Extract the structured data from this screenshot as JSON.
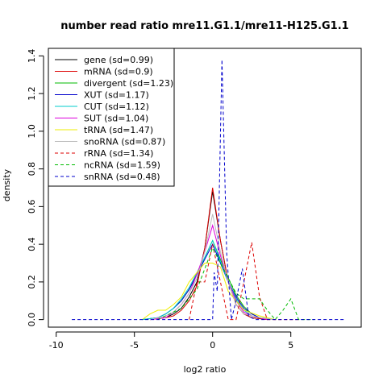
{
  "chart_data": {
    "type": "line",
    "title": "number read ratio mre11.G1.1/mre11-H125.G1.1",
    "xlabel": "log2 ratio",
    "ylabel": "density",
    "xlim": [
      -10.5,
      9.5
    ],
    "ylim": [
      -0.04,
      1.44
    ],
    "x_ticks": [
      -10,
      -5,
      0,
      5
    ],
    "y_ticks": [
      0.0,
      0.2,
      0.4,
      0.6,
      0.8,
      1.0,
      1.2,
      1.4
    ],
    "x_tick_labels": [
      "-10",
      "-5",
      "0",
      "5"
    ],
    "y_tick_labels": [
      "0.0",
      "0.2",
      "0.4",
      "0.6",
      "0.8",
      "1.0",
      "1.2",
      "1.4"
    ],
    "grid": false,
    "legend_position": "top-left",
    "series": [
      {
        "name": "gene (sd=0.99)",
        "color": "#000000",
        "dash": false,
        "points": [
          [
            -4,
            0
          ],
          [
            -3,
            0.01
          ],
          [
            -2.5,
            0.03
          ],
          [
            -2,
            0.06
          ],
          [
            -1.5,
            0.12
          ],
          [
            -1,
            0.2
          ],
          [
            -0.5,
            0.38
          ],
          [
            0,
            0.68
          ],
          [
            0.5,
            0.42
          ],
          [
            1,
            0.2
          ],
          [
            1.5,
            0.08
          ],
          [
            2,
            0.03
          ],
          [
            2.5,
            0.01
          ],
          [
            3.5,
            0
          ]
        ]
      },
      {
        "name": "mRNA (sd=0.9)",
        "color": "#dd0000",
        "dash": false,
        "points": [
          [
            -4,
            0
          ],
          [
            -3,
            0.01
          ],
          [
            -2.5,
            0.02
          ],
          [
            -2,
            0.05
          ],
          [
            -1.5,
            0.1
          ],
          [
            -1,
            0.18
          ],
          [
            -0.5,
            0.38
          ],
          [
            0,
            0.7
          ],
          [
            0.5,
            0.42
          ],
          [
            1,
            0.2
          ],
          [
            1.5,
            0.08
          ],
          [
            2,
            0.03
          ],
          [
            2.5,
            0.01
          ],
          [
            3.5,
            0
          ]
        ]
      },
      {
        "name": "divergent (sd=1.23)",
        "color": "#00bb00",
        "dash": false,
        "points": [
          [
            -4.5,
            0
          ],
          [
            -3.5,
            0.01
          ],
          [
            -3,
            0.03
          ],
          [
            -2.5,
            0.06
          ],
          [
            -2,
            0.1
          ],
          [
            -1.5,
            0.16
          ],
          [
            -1,
            0.24
          ],
          [
            -0.5,
            0.33
          ],
          [
            0,
            0.42
          ],
          [
            0.5,
            0.32
          ],
          [
            1,
            0.22
          ],
          [
            1.5,
            0.13
          ],
          [
            2,
            0.07
          ],
          [
            2.5,
            0.03
          ],
          [
            3,
            0.01
          ],
          [
            4,
            0
          ]
        ]
      },
      {
        "name": "XUT (sd=1.17)",
        "color": "#0000cc",
        "dash": false,
        "points": [
          [
            -4.5,
            0
          ],
          [
            -3.5,
            0.01
          ],
          [
            -3,
            0.03
          ],
          [
            -2.5,
            0.06
          ],
          [
            -2,
            0.1
          ],
          [
            -1.5,
            0.16
          ],
          [
            -1,
            0.24
          ],
          [
            -0.5,
            0.32
          ],
          [
            0,
            0.4
          ],
          [
            0.5,
            0.3
          ],
          [
            1,
            0.2
          ],
          [
            1.5,
            0.12
          ],
          [
            2,
            0.06
          ],
          [
            2.5,
            0.03
          ],
          [
            3,
            0.01
          ],
          [
            4,
            0
          ]
        ]
      },
      {
        "name": "CUT (sd=1.12)",
        "color": "#00cccc",
        "dash": false,
        "points": [
          [
            -4.5,
            0
          ],
          [
            -3.5,
            0.01
          ],
          [
            -3,
            0.03
          ],
          [
            -2.5,
            0.06
          ],
          [
            -2,
            0.11
          ],
          [
            -1.5,
            0.17
          ],
          [
            -1,
            0.25
          ],
          [
            -0.5,
            0.33
          ],
          [
            0,
            0.42
          ],
          [
            0.5,
            0.31
          ],
          [
            1,
            0.2
          ],
          [
            1.5,
            0.11
          ],
          [
            2,
            0.05
          ],
          [
            2.5,
            0.02
          ],
          [
            3,
            0.01
          ],
          [
            4,
            0
          ]
        ]
      },
      {
        "name": "SUT (sd=1.04)",
        "color": "#dd00dd",
        "dash": false,
        "points": [
          [
            -4,
            0
          ],
          [
            -3,
            0.01
          ],
          [
            -2.5,
            0.04
          ],
          [
            -2,
            0.08
          ],
          [
            -1.5,
            0.14
          ],
          [
            -1,
            0.24
          ],
          [
            -0.5,
            0.36
          ],
          [
            0,
            0.5
          ],
          [
            0.5,
            0.34
          ],
          [
            1,
            0.2
          ],
          [
            1.5,
            0.1
          ],
          [
            2,
            0.04
          ],
          [
            2.5,
            0.02
          ],
          [
            3.5,
            0
          ]
        ]
      },
      {
        "name": "tRNA (sd=1.47)",
        "color": "#eeee00",
        "dash": false,
        "points": [
          [
            -4.5,
            0
          ],
          [
            -4,
            0.03
          ],
          [
            -3.5,
            0.05
          ],
          [
            -3,
            0.05
          ],
          [
            -2.5,
            0.08
          ],
          [
            -2,
            0.12
          ],
          [
            -1.5,
            0.2
          ],
          [
            -1,
            0.25
          ],
          [
            -0.5,
            0.3
          ],
          [
            0,
            0.3
          ],
          [
            0.5,
            0.28
          ],
          [
            1,
            0.15
          ],
          [
            1.5,
            0.1
          ],
          [
            2,
            0.05
          ],
          [
            3,
            0.02
          ],
          [
            4,
            0
          ]
        ]
      },
      {
        "name": "snoRNA (sd=0.87)",
        "color": "#bbbbbb",
        "dash": false,
        "points": [
          [
            -4,
            0
          ],
          [
            -3,
            0.02
          ],
          [
            -2.5,
            0.04
          ],
          [
            -2,
            0.08
          ],
          [
            -1.5,
            0.14
          ],
          [
            -1,
            0.22
          ],
          [
            -0.5,
            0.36
          ],
          [
            0,
            0.56
          ],
          [
            0.5,
            0.36
          ],
          [
            1,
            0.2
          ],
          [
            1.5,
            0.08
          ],
          [
            2,
            0.03
          ],
          [
            3,
            0.01
          ],
          [
            4,
            0
          ]
        ]
      },
      {
        "name": "rRNA (sd=1.34)",
        "color": "#dd0000",
        "dash": true,
        "points": [
          [
            -1.5,
            0
          ],
          [
            -1,
            0.2
          ],
          [
            -0.5,
            0.2
          ],
          [
            0,
            0.4
          ],
          [
            0.5,
            0.2
          ],
          [
            1,
            0
          ],
          [
            1.5,
            0
          ],
          [
            2,
            0.2
          ],
          [
            2.5,
            0.41
          ],
          [
            3,
            0.12
          ],
          [
            3.5,
            0
          ],
          [
            5.5,
            0
          ]
        ]
      },
      {
        "name": "ncRNA (sd=1.59)",
        "color": "#00bb00",
        "dash": true,
        "points": [
          [
            -3.5,
            0
          ],
          [
            -2,
            0.06
          ],
          [
            -1,
            0.16
          ],
          [
            0,
            0.38
          ],
          [
            1,
            0.22
          ],
          [
            1.5,
            0.14
          ],
          [
            2,
            0.11
          ],
          [
            2.5,
            0.11
          ],
          [
            3,
            0.11
          ],
          [
            3.5,
            0.05
          ],
          [
            4,
            0
          ],
          [
            4.5,
            0.05
          ],
          [
            5,
            0.11
          ],
          [
            5.5,
            0
          ],
          [
            6.5,
            0
          ]
        ]
      },
      {
        "name": "snRNA (sd=0.48)",
        "color": "#0000cc",
        "dash": true,
        "points": [
          [
            -9,
            0
          ],
          [
            -4,
            0
          ],
          [
            -2,
            0
          ],
          [
            0,
            0
          ],
          [
            0.1,
            0.25
          ],
          [
            0.3,
            0.15
          ],
          [
            0.6,
            1.38
          ],
          [
            0.9,
            0.35
          ],
          [
            1.2,
            0
          ],
          [
            1.5,
            0.1
          ],
          [
            1.9,
            0.27
          ],
          [
            2.3,
            0.02
          ],
          [
            2.7,
            0
          ],
          [
            8.5,
            0
          ]
        ]
      }
    ]
  }
}
